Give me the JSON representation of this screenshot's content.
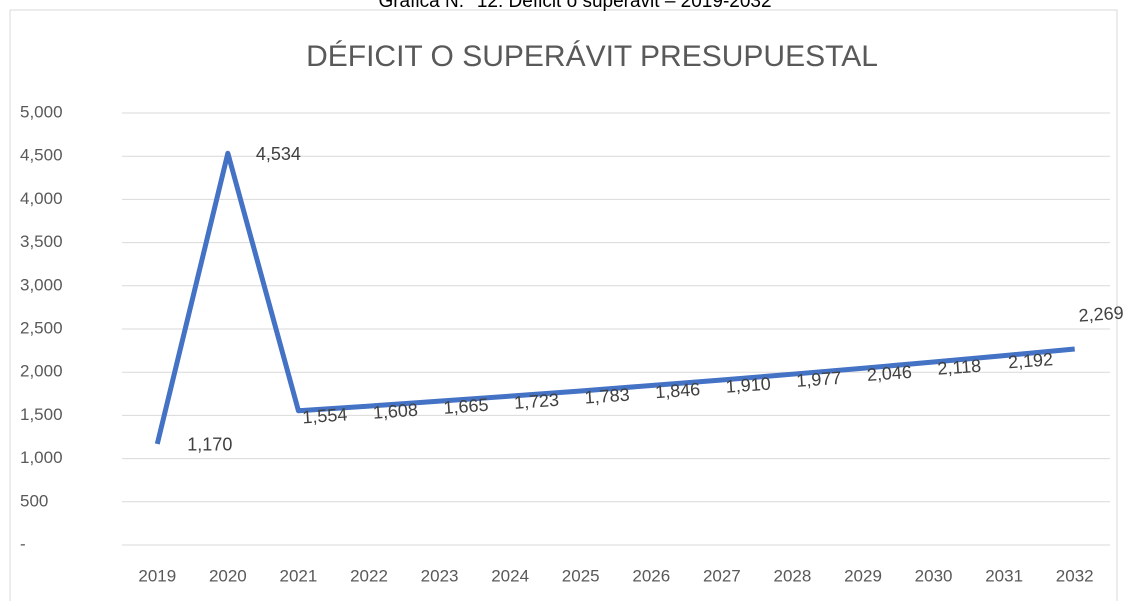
{
  "caption": "Gráfica N.° 12: Déficit o superávit – 2019-2032",
  "chart_data": {
    "type": "line",
    "title": "DÉFICIT O SUPERÁVIT PRESUPUESTAL",
    "categories": [
      "2019",
      "2020",
      "2021",
      "2022",
      "2023",
      "2024",
      "2025",
      "2026",
      "2027",
      "2028",
      "2029",
      "2030",
      "2031",
      "2032"
    ],
    "values": [
      1170,
      4534,
      1554,
      1608,
      1665,
      1723,
      1783,
      1846,
      1910,
      1977,
      2046,
      2118,
      2192,
      2269
    ],
    "value_labels": [
      "1,170",
      "4,534",
      "1,554",
      "1,608",
      "1,665",
      "1,723",
      "1,783",
      "1,846",
      "1,910",
      "1,977",
      "2,046",
      "2,118",
      "2,192",
      "2,269"
    ],
    "color": "#4472c4",
    "ylim": [
      0,
      5000
    ],
    "yticks": [
      {
        "value": 0,
        "label": "-"
      },
      500,
      {
        "value": 1000,
        "label": "1,000"
      },
      {
        "value": 1500,
        "label": "1,500"
      },
      {
        "value": 2000,
        "label": "2,000"
      },
      {
        "value": 2500,
        "label": "2,500"
      },
      {
        "value": 3000,
        "label": "3,000"
      },
      {
        "value": 3500,
        "label": "3,500"
      },
      {
        "value": 4000,
        "label": "4,000"
      },
      {
        "value": 4500,
        "label": "4,500"
      },
      {
        "value": 5000,
        "label": "5,000"
      }
    ],
    "grid": true
  }
}
